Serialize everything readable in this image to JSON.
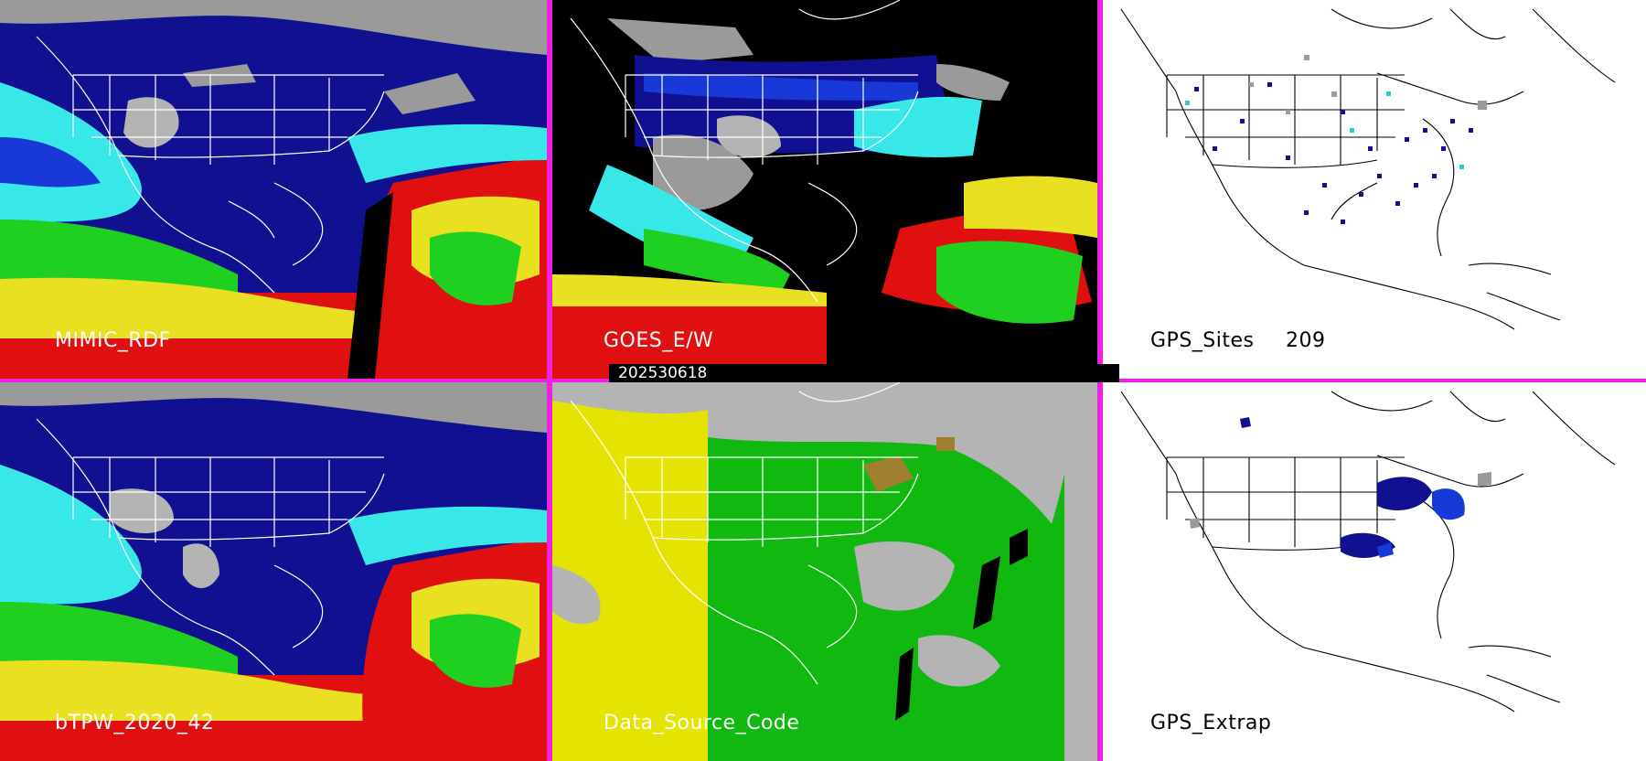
{
  "panels": [
    {
      "id": "mimic",
      "label": "MIMIC_RDF",
      "theme": "tpw"
    },
    {
      "id": "goes",
      "label": "GOES_E/W",
      "theme": "goes"
    },
    {
      "id": "gps_sites",
      "label": "GPS_Sites",
      "count": "209",
      "theme": "gps"
    },
    {
      "id": "btpw",
      "label": "bTPW_2020_42",
      "theme": "tpw"
    },
    {
      "id": "source",
      "label": "Data_Source_Code",
      "theme": "source"
    },
    {
      "id": "gps_extrap",
      "label": "GPS_Extrap",
      "theme": "extrap"
    }
  ],
  "date": "202530618",
  "colors": {
    "divider": "#f020e0",
    "tpw_navy": "#101090",
    "tpw_blue": "#1838d8",
    "tpw_cyan": "#38e8e8",
    "tpw_green": "#20d020",
    "tpw_yellow": "#e8e020",
    "tpw_red": "#e01010",
    "source_gray": "#b4b4b4",
    "source_yellow": "#e4e400",
    "source_green": "#10b810"
  }
}
